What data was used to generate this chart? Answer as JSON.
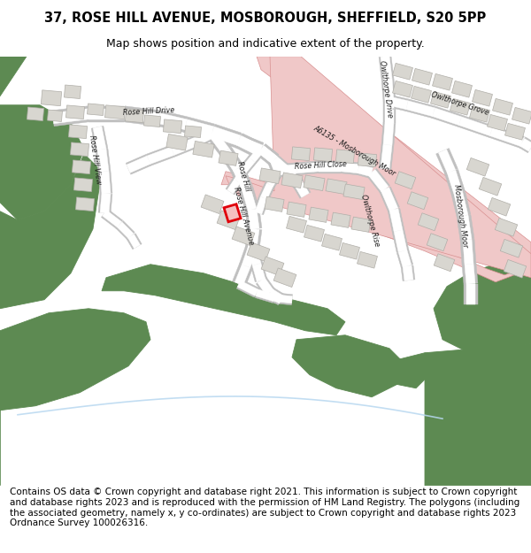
{
  "title_line1": "37, ROSE HILL AVENUE, MOSBOROUGH, SHEFFIELD, S20 5PP",
  "title_line2": "Map shows position and indicative extent of the property.",
  "footer_text": "Contains OS data © Crown copyright and database right 2021. This information is subject to Crown copyright and database rights 2023 and is reproduced with the permission of HM Land Registry. The polygons (including the associated geometry, namely x, y co-ordinates) are subject to Crown copyright and database rights 2023 Ordnance Survey 100026316.",
  "map_bg": "#f2f0eb",
  "green_color": "#5d8a52",
  "road_color": "#ffffff",
  "road_casing": "#c0c0c0",
  "building_fill": "#d8d6d0",
  "building_edge": "#b0aea8",
  "highlight_edge": "#e0000a",
  "highlight_fill": "#f5c0c0",
  "pink_road_fill": "#f0c8c8",
  "pink_road_edge": "#d89090",
  "water_color": "#b8d8f0",
  "title_fontsize": 10.5,
  "subtitle_fontsize": 9,
  "footer_fontsize": 7.5,
  "label_fontsize": 5.8
}
